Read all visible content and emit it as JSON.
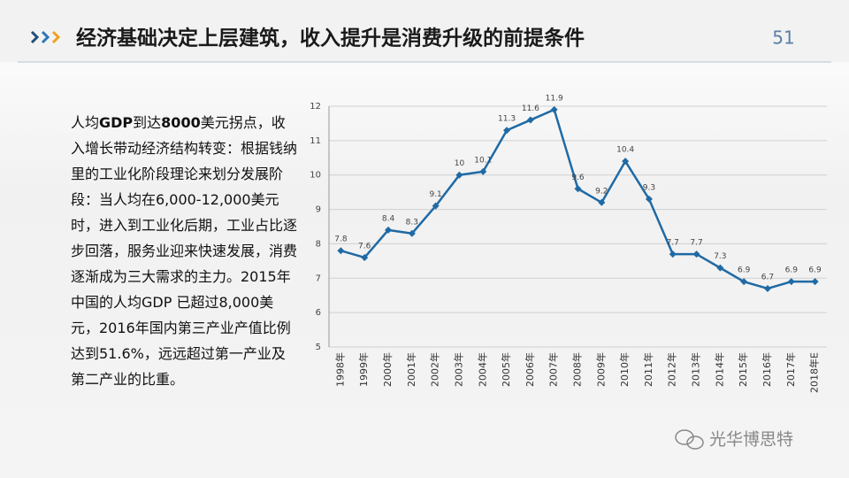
{
  "header": {
    "title": "经济基础决定上层建筑，收入提升是消费升级的前提条件",
    "page_number": "51"
  },
  "body": {
    "segments": [
      {
        "text": "人均",
        "bold": false
      },
      {
        "text": "GDP",
        "bold": true
      },
      {
        "text": "到达",
        "bold": false
      },
      {
        "text": "8000",
        "bold": true
      },
      {
        "text": "美元拐点，收入增长带动经济结构转变：根据钱纳里的工业化阶段理论来划分发展阶段：当人均在6,000-12,000美元时，进入到工业化后期，工业占比逐步回落，服务业迎来快速发展，消费逐渐成为三大需求的主力。2015年中国的人均GDP 已超过8,000美元，2016年国内第三产业产值比例达到51.6%，远远超过第一产业及第二产业的比重。",
        "bold": false
      }
    ]
  },
  "watermark": "光华博思特",
  "chart_data": {
    "type": "line",
    "categories": [
      "1998年",
      "1999年",
      "2000年",
      "2001年",
      "2002年",
      "2003年",
      "2004年",
      "2005年",
      "2006年",
      "2007年",
      "2008年",
      "2009年",
      "2010年",
      "2011年",
      "2012年",
      "2013年",
      "2014年",
      "2015年",
      "2016年",
      "2017年",
      "2018年E"
    ],
    "values": [
      7.8,
      7.6,
      8.4,
      8.3,
      9.1,
      10,
      10.1,
      11.3,
      11.6,
      11.9,
      9.6,
      9.2,
      10.4,
      9.3,
      7.7,
      7.7,
      7.3,
      6.9,
      6.7,
      6.9,
      6.9
    ],
    "color": "#1f6aa5",
    "ylim": [
      5,
      12
    ],
    "yticks": [
      5,
      6,
      7,
      8,
      9,
      10,
      11,
      12
    ],
    "grid": true
  }
}
